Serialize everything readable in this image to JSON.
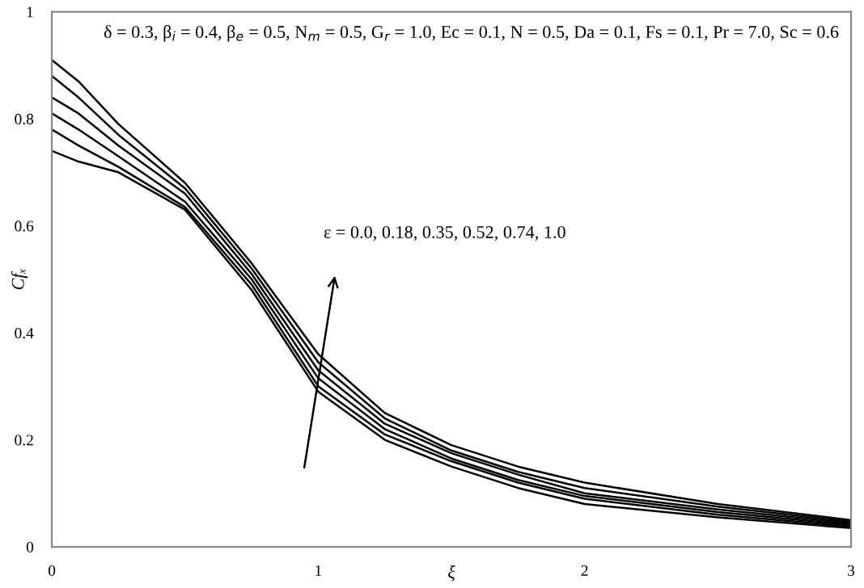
{
  "chart_data": {
    "type": "line",
    "xlabel": "ξ",
    "ylabel": "Cfₓ",
    "xlim": [
      0,
      3
    ],
    "ylim": [
      0,
      1
    ],
    "xticks": [
      0,
      1,
      2,
      3
    ],
    "yticks": [
      0,
      0.2,
      0.4,
      0.6,
      0.8,
      1
    ],
    "grid": false,
    "legend": false,
    "marker": "none",
    "line_style": "solid",
    "annotations": [
      "δ = 0.3, β$_{i}$ = 0.4, β$_{e}$ = 0.5, N$_{m}$ = 0.5, G$_{r}$ = 1.0, Ec = 0.1, N = 0.5, Da = 0.1, Fs = 0.1, Pr = 7.0, Sc = 0.6",
      "ε = 0.0, 0.18, 0.35, 0.52, 0.74, 1.0"
    ],
    "x": [
      0,
      0.1,
      0.25,
      0.5,
      0.75,
      1,
      1.25,
      1.5,
      1.75,
      2,
      2.5,
      3
    ],
    "series": [
      {
        "color": "#000000",
        "values": [
          0.74,
          0.72,
          0.7,
          0.63,
          0.48,
          0.29,
          0.2,
          0.15,
          0.11,
          0.08,
          0.055,
          0.035
        ]
      },
      {
        "color": "#000000",
        "values": [
          0.78,
          0.75,
          0.71,
          0.635,
          0.49,
          0.3,
          0.21,
          0.16,
          0.12,
          0.09,
          0.06,
          0.038
        ]
      },
      {
        "color": "#000000",
        "values": [
          0.81,
          0.78,
          0.73,
          0.645,
          0.5,
          0.315,
          0.22,
          0.165,
          0.125,
          0.095,
          0.065,
          0.041
        ]
      },
      {
        "color": "#000000",
        "values": [
          0.84,
          0.81,
          0.75,
          0.66,
          0.51,
          0.33,
          0.23,
          0.175,
          0.135,
          0.1,
          0.07,
          0.044
        ]
      },
      {
        "color": "#000000",
        "values": [
          0.88,
          0.84,
          0.77,
          0.67,
          0.52,
          0.345,
          0.24,
          0.18,
          0.14,
          0.11,
          0.075,
          0.047
        ]
      },
      {
        "color": "#000000",
        "values": [
          0.91,
          0.87,
          0.79,
          0.68,
          0.53,
          0.36,
          0.25,
          0.19,
          0.15,
          0.12,
          0.08,
          0.05
        ]
      }
    ]
  }
}
